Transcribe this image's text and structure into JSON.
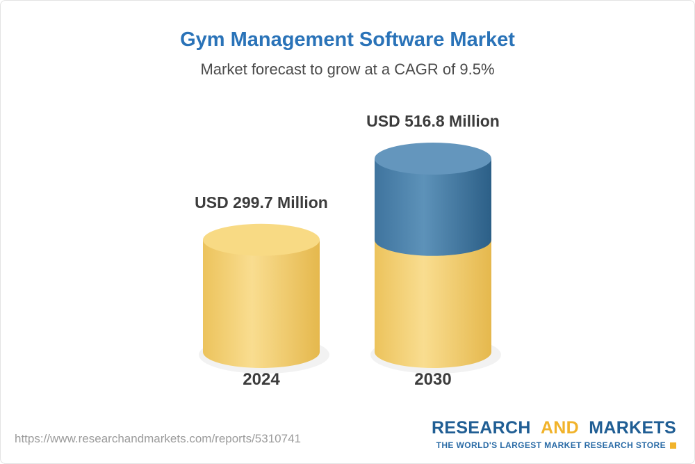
{
  "chart_data": {
    "type": "bar",
    "subtype": "3d-cylinder",
    "title": "Gym Management Software Market",
    "subtitle": "Market forecast to grow at a CAGR of 9.5%",
    "categories": [
      "2024",
      "2030"
    ],
    "series": [
      {
        "name": "Market value (USD Million)",
        "values": [
          299.7,
          516.8
        ]
      }
    ],
    "value_labels": [
      "USD 299.7 Million",
      "USD 516.8 Million"
    ],
    "cagr": "9.5%",
    "xlabel": "",
    "ylabel": "USD Million",
    "ylim": [
      0,
      516.8
    ],
    "grid": false,
    "legend": false,
    "colors": {
      "yellow": {
        "top": "#f8da84",
        "left": "#ecc35c",
        "mid": "#f9dd90",
        "right": "#e5b84d"
      },
      "blue": {
        "top": "#6496bd",
        "left": "#3f749e",
        "mid": "#5d92b9",
        "right": "#2c5f87"
      },
      "title_accent": "#2a73b8",
      "logo_blue": "#205e94",
      "logo_gold": "#f1b32b"
    }
  },
  "footer": {
    "url": "https://www.researchandmarkets.com/reports/5310741",
    "logo": {
      "part1": "RESEARCH",
      "part2": "AND",
      "part3": "MARKETS",
      "tagline": "THE WORLD'S LARGEST MARKET RESEARCH STORE"
    }
  }
}
